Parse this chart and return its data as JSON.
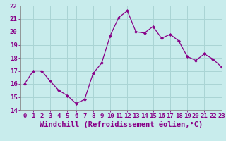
{
  "x": [
    0,
    1,
    2,
    3,
    4,
    5,
    6,
    7,
    8,
    9,
    10,
    11,
    12,
    13,
    14,
    15,
    16,
    17,
    18,
    19,
    20,
    21,
    22,
    23
  ],
  "y": [
    16.0,
    17.0,
    17.0,
    16.2,
    15.5,
    15.1,
    14.5,
    14.8,
    16.8,
    17.6,
    19.7,
    21.1,
    21.6,
    20.0,
    19.9,
    20.4,
    19.5,
    19.8,
    19.3,
    18.1,
    17.8,
    18.3,
    17.9,
    17.3
  ],
  "line_color": "#880088",
  "marker_color": "#880088",
  "bg_color": "#c8ecec",
  "grid_color": "#aad4d4",
  "xlabel": "Windchill (Refroidissement éolien,°C)",
  "ylim": [
    14,
    22
  ],
  "xlim": [
    -0.5,
    23
  ],
  "yticks": [
    14,
    15,
    16,
    17,
    18,
    19,
    20,
    21,
    22
  ],
  "xticks": [
    0,
    1,
    2,
    3,
    4,
    5,
    6,
    7,
    8,
    9,
    10,
    11,
    12,
    13,
    14,
    15,
    16,
    17,
    18,
    19,
    20,
    21,
    22,
    23
  ],
  "tick_fontsize": 6.5,
  "label_fontsize": 7.5
}
